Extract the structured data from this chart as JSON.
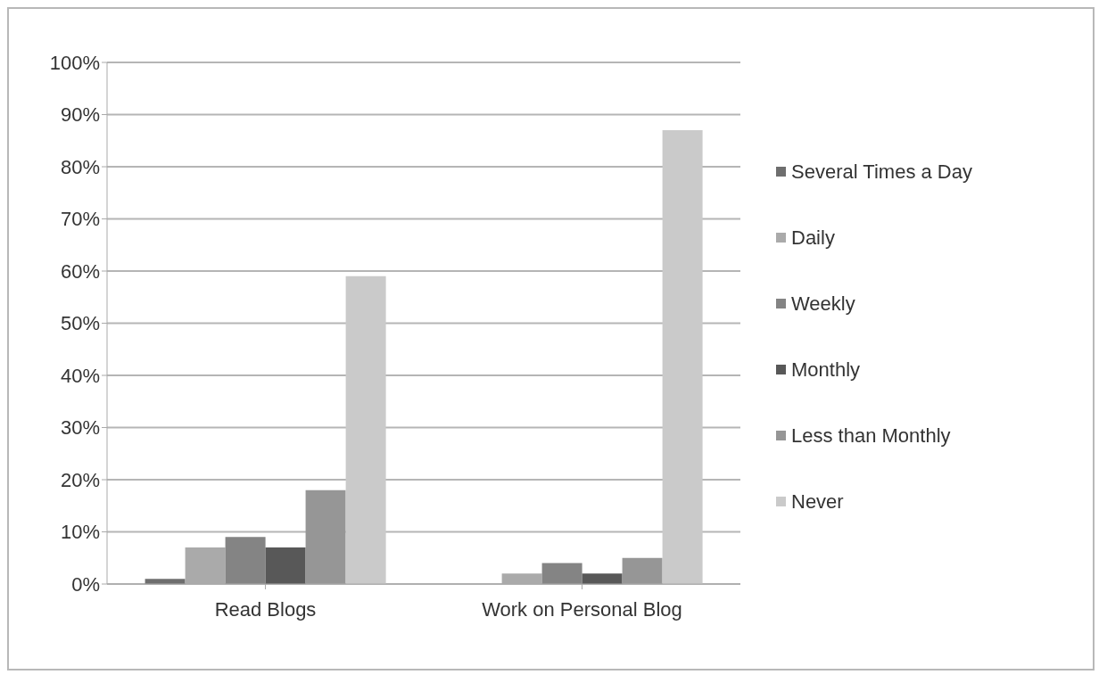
{
  "chart_data": {
    "type": "bar",
    "categories": [
      "Read Blogs",
      "Work on Personal Blog"
    ],
    "series": [
      {
        "name": "Several Times a Day",
        "color": "#6e6e6e",
        "values": [
          1,
          0
        ]
      },
      {
        "name": "Daily",
        "color": "#aaaaaa",
        "values": [
          7,
          2
        ]
      },
      {
        "name": "Weekly",
        "color": "#848484",
        "values": [
          9,
          4
        ]
      },
      {
        "name": "Monthly",
        "color": "#585858",
        "values": [
          7,
          2
        ]
      },
      {
        "name": "Less than Monthly",
        "color": "#969696",
        "values": [
          18,
          5
        ]
      },
      {
        "name": "Never",
        "color": "#cacaca",
        "values": [
          59,
          87
        ]
      }
    ],
    "ylim": [
      0,
      100
    ],
    "yticks": [
      {
        "value": 0,
        "label": "0%"
      },
      {
        "value": 10,
        "label": "10%"
      },
      {
        "value": 20,
        "label": "20%"
      },
      {
        "value": 30,
        "label": "30%"
      },
      {
        "value": 40,
        "label": "40%"
      },
      {
        "value": 50,
        "label": "50%"
      },
      {
        "value": 60,
        "label": "60%"
      },
      {
        "value": 70,
        "label": "70%"
      },
      {
        "value": 80,
        "label": "80%"
      },
      {
        "value": 90,
        "label": "90%"
      },
      {
        "value": 100,
        "label": "100%"
      }
    ],
    "grid": "y",
    "legend": "right"
  }
}
